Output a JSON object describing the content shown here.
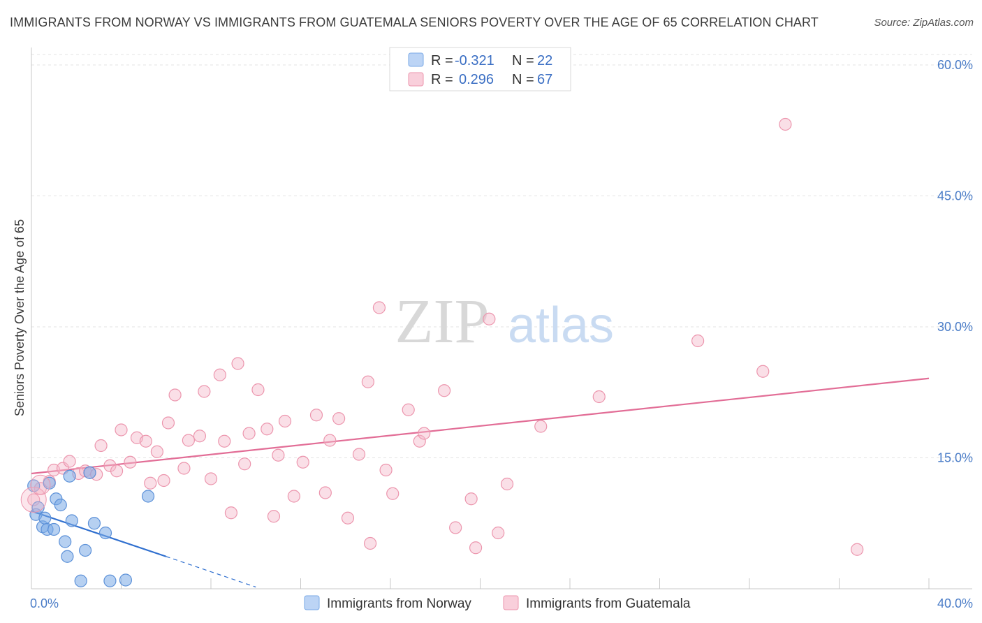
{
  "title": "IMMIGRANTS FROM NORWAY VS IMMIGRANTS FROM GUATEMALA SENIORS POVERTY OVER THE AGE OF 65 CORRELATION CHART",
  "source": "Source: ZipAtlas.com",
  "watermark": {
    "zip": "ZIP",
    "atlas": "atlas"
  },
  "legend": {
    "rows": [
      {
        "r_label": "R =",
        "r_value": "-0.321",
        "n_label": "N =",
        "n_value": "22",
        "color": "#a9c8f0"
      },
      {
        "r_label": "R =",
        "r_value": "0.296",
        "n_label": "N =",
        "n_value": "67",
        "color": "#f5b8c9"
      }
    ]
  },
  "bottom_legend": [
    "Immigrants from Norway",
    "Immigrants from Guatemala"
  ],
  "chart_data": {
    "type": "scatter",
    "ylabel": "Seniors Poverty Over the Age of 65",
    "x_tick_labels": [
      "0.0%",
      "40.0%"
    ],
    "y_tick_labels": [
      "15.0%",
      "30.0%",
      "45.0%",
      "60.0%"
    ],
    "y_ticks": [
      15,
      30,
      45,
      60
    ],
    "xlim": [
      0,
      40
    ],
    "ylim": [
      0,
      62
    ],
    "series": [
      {
        "name": "Immigrants from Norway",
        "color": "#7aa9e6",
        "stroke": "#5b90d8",
        "line_color": "#2f6fcf",
        "trend": {
          "x0": 0,
          "y0": 8.9,
          "x1": 6,
          "y1": 3.7,
          "dash_to_x": 10,
          "dash_to_y": 0.2
        },
        "points": [
          [
            0.1,
            11.8
          ],
          [
            0.2,
            8.5
          ],
          [
            0.3,
            9.3
          ],
          [
            0.5,
            7.1
          ],
          [
            0.6,
            8.1
          ],
          [
            0.7,
            6.8
          ],
          [
            0.8,
            12.1
          ],
          [
            1.0,
            6.8
          ],
          [
            1.1,
            10.3
          ],
          [
            1.3,
            9.6
          ],
          [
            1.5,
            5.4
          ],
          [
            1.6,
            3.7
          ],
          [
            1.7,
            12.9
          ],
          [
            1.8,
            7.8
          ],
          [
            2.2,
            0.9
          ],
          [
            2.4,
            4.4
          ],
          [
            2.6,
            13.3
          ],
          [
            2.8,
            7.5
          ],
          [
            3.3,
            6.4
          ],
          [
            3.5,
            0.9
          ],
          [
            4.2,
            1.0
          ],
          [
            5.2,
            10.6
          ]
        ]
      },
      {
        "name": "Immigrants from Guatemala",
        "color": "#f5b8c9",
        "stroke": "#ec95ad",
        "line_color": "#e26d96",
        "trend": {
          "x0": 0,
          "y0": 13.2,
          "x1": 40,
          "y1": 24.1
        },
        "points": [
          [
            0.1,
            10.2
          ],
          [
            0.4,
            11.5
          ],
          [
            0.8,
            12.3
          ],
          [
            1.0,
            13.6
          ],
          [
            1.4,
            13.8
          ],
          [
            1.7,
            14.6
          ],
          [
            2.1,
            13.2
          ],
          [
            2.4,
            13.5
          ],
          [
            2.6,
            13.3
          ],
          [
            2.9,
            13.1
          ],
          [
            3.1,
            16.4
          ],
          [
            3.5,
            14.1
          ],
          [
            3.8,
            13.5
          ],
          [
            4.0,
            18.2
          ],
          [
            4.4,
            14.5
          ],
          [
            4.7,
            17.3
          ],
          [
            5.1,
            16.9
          ],
          [
            5.3,
            12.1
          ],
          [
            5.6,
            15.7
          ],
          [
            5.9,
            12.4
          ],
          [
            6.1,
            19.0
          ],
          [
            6.4,
            22.2
          ],
          [
            6.8,
            13.8
          ],
          [
            7.0,
            17.0
          ],
          [
            7.5,
            17.5
          ],
          [
            7.7,
            22.6
          ],
          [
            8.0,
            12.6
          ],
          [
            8.4,
            24.5
          ],
          [
            8.6,
            16.9
          ],
          [
            8.9,
            8.7
          ],
          [
            9.2,
            25.8
          ],
          [
            9.5,
            14.3
          ],
          [
            9.7,
            17.8
          ],
          [
            10.1,
            22.8
          ],
          [
            10.5,
            18.3
          ],
          [
            10.8,
            8.3
          ],
          [
            11.0,
            15.3
          ],
          [
            11.3,
            19.2
          ],
          [
            11.7,
            10.6
          ],
          [
            12.1,
            14.5
          ],
          [
            12.7,
            19.9
          ],
          [
            13.1,
            11.0
          ],
          [
            13.3,
            17.0
          ],
          [
            13.7,
            19.5
          ],
          [
            14.1,
            8.1
          ],
          [
            14.6,
            15.4
          ],
          [
            15.0,
            23.7
          ],
          [
            15.1,
            5.2
          ],
          [
            15.5,
            32.2
          ],
          [
            15.8,
            13.6
          ],
          [
            16.1,
            10.9
          ],
          [
            16.8,
            20.5
          ],
          [
            17.3,
            16.9
          ],
          [
            17.5,
            17.8
          ],
          [
            18.4,
            22.7
          ],
          [
            18.9,
            7.0
          ],
          [
            19.6,
            10.3
          ],
          [
            19.8,
            4.7
          ],
          [
            20.4,
            30.9
          ],
          [
            20.8,
            6.4
          ],
          [
            21.2,
            12.0
          ],
          [
            22.7,
            18.6
          ],
          [
            25.3,
            22.0
          ],
          [
            29.7,
            28.4
          ],
          [
            32.6,
            24.9
          ],
          [
            33.6,
            53.2
          ],
          [
            36.8,
            4.5
          ]
        ]
      }
    ]
  }
}
